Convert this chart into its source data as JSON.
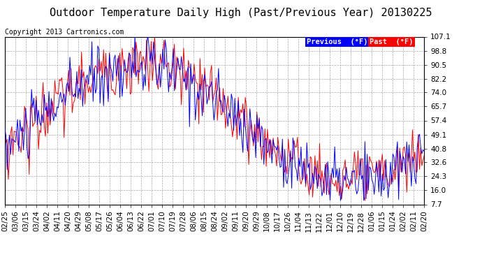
{
  "title": "Outdoor Temperature Daily High (Past/Previous Year) 20130225",
  "copyright": "Copyright 2013 Cartronics.com",
  "ylabel_values": [
    107.1,
    98.8,
    90.5,
    82.2,
    74.0,
    65.7,
    57.4,
    49.1,
    40.8,
    32.6,
    24.3,
    16.0,
    7.7
  ],
  "ylim": [
    7.7,
    107.1
  ],
  "xtick_labels": [
    "02/25",
    "03/06",
    "03/15",
    "03/24",
    "04/02",
    "04/11",
    "04/20",
    "04/29",
    "05/08",
    "05/17",
    "05/26",
    "06/04",
    "06/13",
    "06/22",
    "07/01",
    "07/10",
    "07/19",
    "07/28",
    "08/06",
    "08/15",
    "08/24",
    "09/02",
    "09/11",
    "09/20",
    "09/29",
    "10/08",
    "10/17",
    "10/26",
    "11/04",
    "11/13",
    "11/22",
    "12/01",
    "12/10",
    "12/19",
    "12/28",
    "01/06",
    "01/15",
    "01/24",
    "02/02",
    "02/11",
    "02/20"
  ],
  "legend_labels": [
    "Previous  (°F)",
    "Past  (°F)"
  ],
  "legend_colors": [
    "#0000ff",
    "#ff0000"
  ],
  "line_color_previous": "#0000ff",
  "line_color_past": "#ff0000",
  "background_color": "#ffffff",
  "grid_color": "#aaaaaa",
  "title_fontsize": 11,
  "copyright_fontsize": 7,
  "tick_fontsize": 7.5,
  "legend_fontsize": 7.5
}
